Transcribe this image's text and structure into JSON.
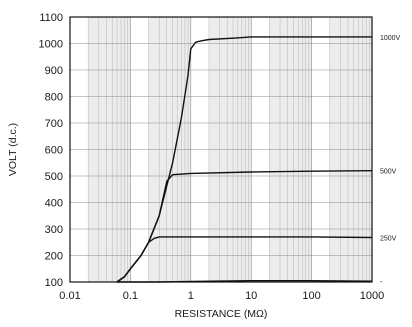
{
  "chart_data": {
    "type": "line",
    "title": "",
    "xlabel": "RESISTANCE (MΩ)",
    "ylabel": "VOLT (d.c.)",
    "xscale": "log",
    "xlim": [
      0.01,
      1000
    ],
    "ylim": [
      100,
      1100
    ],
    "x_ticks": [
      0.01,
      0.1,
      1,
      10,
      100,
      1000
    ],
    "x_tick_labels": [
      "0.01",
      "0.1",
      "1",
      "10",
      "100",
      "1000"
    ],
    "y_ticks": [
      100,
      200,
      300,
      400,
      500,
      600,
      700,
      800,
      900,
      1000,
      1100
    ],
    "y_tick_labels": [
      "100",
      "200",
      "300",
      "400",
      "500",
      "600",
      "700",
      "800",
      "900",
      "1000",
      "1100"
    ],
    "grid": true,
    "series": [
      {
        "name": "1000V",
        "x": [
          0.06,
          0.08,
          0.1,
          0.15,
          0.2,
          0.3,
          0.5,
          0.7,
          0.9,
          1.0,
          1.2,
          1.5,
          2,
          5,
          10,
          100,
          1000
        ],
        "y": [
          100,
          120,
          150,
          200,
          250,
          350,
          550,
          720,
          880,
          980,
          1005,
          1010,
          1015,
          1020,
          1025,
          1025,
          1025
        ]
      },
      {
        "name": "500V",
        "x": [
          0.06,
          0.08,
          0.1,
          0.15,
          0.2,
          0.3,
          0.4,
          0.5,
          1,
          10,
          100,
          1000
        ],
        "y": [
          100,
          120,
          150,
          200,
          250,
          350,
          480,
          505,
          510,
          515,
          518,
          520
        ]
      },
      {
        "name": "250V",
        "x": [
          0.06,
          0.08,
          0.1,
          0.15,
          0.2,
          0.25,
          0.3,
          1,
          10,
          100,
          1000
        ],
        "y": [
          100,
          120,
          150,
          200,
          250,
          265,
          270,
          270,
          270,
          270,
          268
        ]
      },
      {
        "name": "",
        "x": [
          0.06,
          0.3,
          1,
          10,
          100,
          1000
        ],
        "y": [
          100,
          100,
          102,
          105,
          105,
          103
        ]
      }
    ],
    "series_labels": [
      "1000V",
      "500V",
      "250V",
      "-"
    ]
  }
}
